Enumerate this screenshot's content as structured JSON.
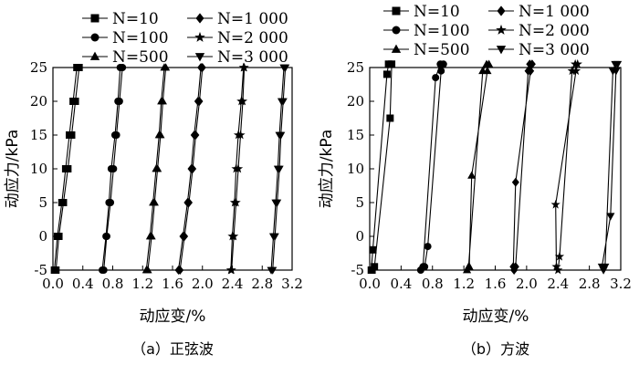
{
  "chart_data": [
    {
      "type": "line",
      "caption": "（a）正弦波",
      "xlabel": "动应变/%",
      "ylabel": "动应力/kPa",
      "xlim": [
        0.0,
        3.2
      ],
      "ylim": [
        -5,
        25
      ],
      "xticks": [
        "0.0",
        "0.4",
        "0.8",
        "1.2",
        "1.6",
        "2.0",
        "2.4",
        "2.8",
        "3.2"
      ],
      "yticks": [
        "-5",
        "0",
        "5",
        "10",
        "15",
        "20",
        "25"
      ],
      "legend": [
        "N=10",
        "N=100",
        "N=500",
        "N=1 000",
        "N=2 000",
        "N=3 000"
      ],
      "series": [
        {
          "name": "N=10",
          "marker": "square",
          "up": [
            [
              0.02,
              -5
            ],
            [
              0.06,
              0
            ],
            [
              0.12,
              5
            ],
            [
              0.17,
              10
            ],
            [
              0.22,
              15
            ],
            [
              0.27,
              20
            ],
            [
              0.32,
              25
            ]
          ],
          "down": [
            [
              0.35,
              25
            ],
            [
              0.3,
              20
            ],
            [
              0.25,
              15
            ],
            [
              0.2,
              10
            ],
            [
              0.14,
              5
            ],
            [
              0.08,
              0
            ],
            [
              0.04,
              -5
            ]
          ]
        },
        {
          "name": "N=100",
          "marker": "circle",
          "up": [
            [
              0.66,
              -5
            ],
            [
              0.71,
              0
            ],
            [
              0.75,
              5
            ],
            [
              0.78,
              10
            ],
            [
              0.83,
              15
            ],
            [
              0.87,
              20
            ],
            [
              0.9,
              25
            ]
          ],
          "down": [
            [
              0.93,
              25
            ],
            [
              0.89,
              20
            ],
            [
              0.85,
              15
            ],
            [
              0.81,
              10
            ],
            [
              0.77,
              5
            ],
            [
              0.72,
              0
            ],
            [
              0.68,
              -5
            ]
          ]
        },
        {
          "name": "N=500",
          "marker": "triangle-up",
          "up": [
            [
              1.25,
              -5
            ],
            [
              1.3,
              0
            ],
            [
              1.34,
              5
            ],
            [
              1.38,
              10
            ],
            [
              1.42,
              15
            ],
            [
              1.45,
              20
            ],
            [
              1.49,
              25
            ]
          ],
          "down": [
            [
              1.51,
              25
            ],
            [
              1.47,
              20
            ],
            [
              1.44,
              15
            ],
            [
              1.4,
              10
            ],
            [
              1.36,
              5
            ],
            [
              1.32,
              0
            ],
            [
              1.27,
              -5
            ]
          ]
        },
        {
          "name": "N=1 000",
          "marker": "diamond",
          "up": [
            [
              1.68,
              -5
            ],
            [
              1.74,
              0
            ],
            [
              1.8,
              5
            ],
            [
              1.85,
              10
            ],
            [
              1.89,
              15
            ],
            [
              1.94,
              20
            ],
            [
              1.98,
              25
            ]
          ],
          "down": [
            [
              2.0,
              25
            ],
            [
              1.96,
              20
            ],
            [
              1.91,
              15
            ],
            [
              1.87,
              10
            ],
            [
              1.82,
              5
            ],
            [
              1.76,
              0
            ],
            [
              1.7,
              -5
            ]
          ]
        },
        {
          "name": "N=2 000",
          "marker": "star",
          "up": [
            [
              2.38,
              -5
            ],
            [
              2.4,
              0
            ],
            [
              2.43,
              5
            ],
            [
              2.45,
              10
            ],
            [
              2.48,
              15
            ],
            [
              2.52,
              20
            ],
            [
              2.55,
              25
            ]
          ],
          "down": [
            [
              2.56,
              25
            ],
            [
              2.54,
              20
            ],
            [
              2.51,
              15
            ],
            [
              2.48,
              10
            ],
            [
              2.45,
              5
            ],
            [
              2.42,
              0
            ],
            [
              2.39,
              -5
            ]
          ]
        },
        {
          "name": "N=3 000",
          "marker": "triangle-down",
          "up": [
            [
              2.92,
              -5
            ],
            [
              2.95,
              0
            ],
            [
              2.98,
              5
            ],
            [
              3.01,
              10
            ],
            [
              3.03,
              15
            ],
            [
              3.06,
              20
            ],
            [
              3.09,
              25
            ]
          ],
          "down": [
            [
              3.11,
              25
            ],
            [
              3.08,
              20
            ],
            [
              3.05,
              15
            ],
            [
              3.03,
              10
            ],
            [
              3.0,
              5
            ],
            [
              2.97,
              0
            ],
            [
              2.94,
              -5
            ]
          ]
        }
      ]
    },
    {
      "type": "line",
      "caption": "（b）方波",
      "xlabel": "动应变/%",
      "ylabel": "动应力/kPa",
      "xlim": [
        0.0,
        3.2
      ],
      "ylim": [
        -5,
        25
      ],
      "xticks": [
        "0.0",
        "0.4",
        "0.8",
        "1.2",
        "1.6",
        "2.0",
        "2.4",
        "2.8",
        "3.2"
      ],
      "yticks": [
        "-5",
        "0",
        "5",
        "10",
        "15",
        "20",
        "25"
      ],
      "legend": [
        "N=10",
        "N=100",
        "N=500",
        "N=1 000",
        "N=2 000",
        "N=3 000"
      ],
      "series": [
        {
          "name": "N=10",
          "marker": "square",
          "up": [
            [
              0.02,
              -5
            ],
            [
              0.04,
              -2
            ],
            [
              0.22,
              24
            ],
            [
              0.24,
              25.5
            ]
          ],
          "down": [
            [
              0.28,
              25.5
            ],
            [
              0.26,
              17.5
            ],
            [
              0.06,
              -4.5
            ],
            [
              0.03,
              -5
            ]
          ]
        },
        {
          "name": "N=100",
          "marker": "circle",
          "up": [
            [
              0.65,
              -5
            ],
            [
              0.68,
              -4.5
            ],
            [
              0.84,
              23.5
            ],
            [
              0.9,
              25.5
            ]
          ],
          "down": [
            [
              0.94,
              25.5
            ],
            [
              0.91,
              24.5
            ],
            [
              0.74,
              -1.5
            ],
            [
              0.7,
              -4.5
            ]
          ]
        },
        {
          "name": "N=500",
          "marker": "triangle-up",
          "up": [
            [
              1.24,
              -5
            ],
            [
              1.26,
              -4.5
            ],
            [
              1.44,
              24.5
            ],
            [
              1.49,
              25.5
            ]
          ],
          "down": [
            [
              1.52,
              25.5
            ],
            [
              1.5,
              24.5
            ],
            [
              1.3,
              9
            ],
            [
              1.27,
              -4.5
            ]
          ]
        },
        {
          "name": "N=1 000",
          "marker": "diamond",
          "up": [
            [
              1.84,
              -5
            ],
            [
              1.86,
              -4.5
            ],
            [
              2.02,
              24.5
            ],
            [
              2.04,
              25.5
            ]
          ],
          "down": [
            [
              2.07,
              25.5
            ],
            [
              2.05,
              24.5
            ],
            [
              1.86,
              8
            ],
            [
              1.83,
              -4.5
            ]
          ]
        },
        {
          "name": "N=2 000",
          "marker": "star",
          "up": [
            [
              2.4,
              -5
            ],
            [
              2.42,
              -3
            ],
            [
              2.58,
              24.5
            ],
            [
              2.62,
              25.5
            ]
          ],
          "down": [
            [
              2.65,
              25.5
            ],
            [
              2.63,
              24.5
            ],
            [
              2.37,
              4.7
            ],
            [
              2.38,
              -4.5
            ]
          ]
        },
        {
          "name": "N=3 000",
          "marker": "triangle-down",
          "up": [
            [
              2.98,
              -5
            ],
            [
              3.0,
              -4.5
            ],
            [
              3.1,
              24.5
            ],
            [
              3.13,
              25.5
            ]
          ],
          "down": [
            [
              3.16,
              25.5
            ],
            [
              3.14,
              24.5
            ],
            [
              3.07,
              3
            ],
            [
              2.96,
              -4.5
            ]
          ]
        }
      ]
    }
  ]
}
